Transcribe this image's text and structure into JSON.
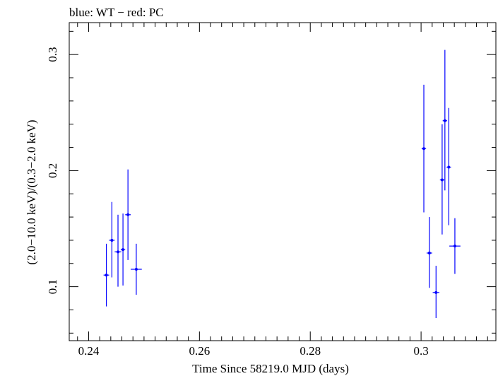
{
  "chart_data": {
    "type": "scatter",
    "title": "blue: WT − red: PC",
    "xlabel": "Time Since 58219.0 MJD (days)",
    "ylabel": "(2.0−10.0 keV)/(0.3−2.0 keV)",
    "xlim": [
      0.2365,
      0.3135
    ],
    "ylim": [
      0.0535,
      0.3275
    ],
    "x_ticks": [
      0.24,
      0.26,
      0.28,
      0.3
    ],
    "x_tick_labels": [
      "0.24",
      "0.26",
      "0.28",
      "0.3"
    ],
    "y_ticks": [
      0.1,
      0.2,
      0.3
    ],
    "y_tick_labels": [
      "0.1",
      "0.2",
      "0.3"
    ],
    "series": [
      {
        "name": "WT",
        "color": "#0000ff",
        "points": [
          {
            "x": 0.2432,
            "y": 0.11,
            "xerr": 0.0005,
            "ylo": 0.083,
            "yhi": 0.137
          },
          {
            "x": 0.2442,
            "y": 0.14,
            "xerr": 0.0005,
            "ylo": 0.108,
            "yhi": 0.173
          },
          {
            "x": 0.2453,
            "y": 0.13,
            "xerr": 0.0006,
            "ylo": 0.1,
            "yhi": 0.162
          },
          {
            "x": 0.2462,
            "y": 0.132,
            "xerr": 0.0004,
            "ylo": 0.101,
            "yhi": 0.163
          },
          {
            "x": 0.2471,
            "y": 0.162,
            "xerr": 0.0005,
            "ylo": 0.123,
            "yhi": 0.201
          },
          {
            "x": 0.2486,
            "y": 0.115,
            "xerr": 0.001,
            "ylo": 0.093,
            "yhi": 0.137
          },
          {
            "x": 0.3005,
            "y": 0.219,
            "xerr": 0.0004,
            "ylo": 0.164,
            "yhi": 0.274
          },
          {
            "x": 0.3015,
            "y": 0.129,
            "xerr": 0.0005,
            "ylo": 0.099,
            "yhi": 0.16
          },
          {
            "x": 0.3027,
            "y": 0.095,
            "xerr": 0.0006,
            "ylo": 0.073,
            "yhi": 0.118
          },
          {
            "x": 0.3038,
            "y": 0.192,
            "xerr": 0.0004,
            "ylo": 0.145,
            "yhi": 0.24
          },
          {
            "x": 0.3043,
            "y": 0.243,
            "xerr": 0.0004,
            "ylo": 0.183,
            "yhi": 0.304
          },
          {
            "x": 0.305,
            "y": 0.203,
            "xerr": 0.0004,
            "ylo": 0.153,
            "yhi": 0.254
          },
          {
            "x": 0.3061,
            "y": 0.135,
            "xerr": 0.001,
            "ylo": 0.111,
            "yhi": 0.159
          }
        ]
      }
    ]
  }
}
